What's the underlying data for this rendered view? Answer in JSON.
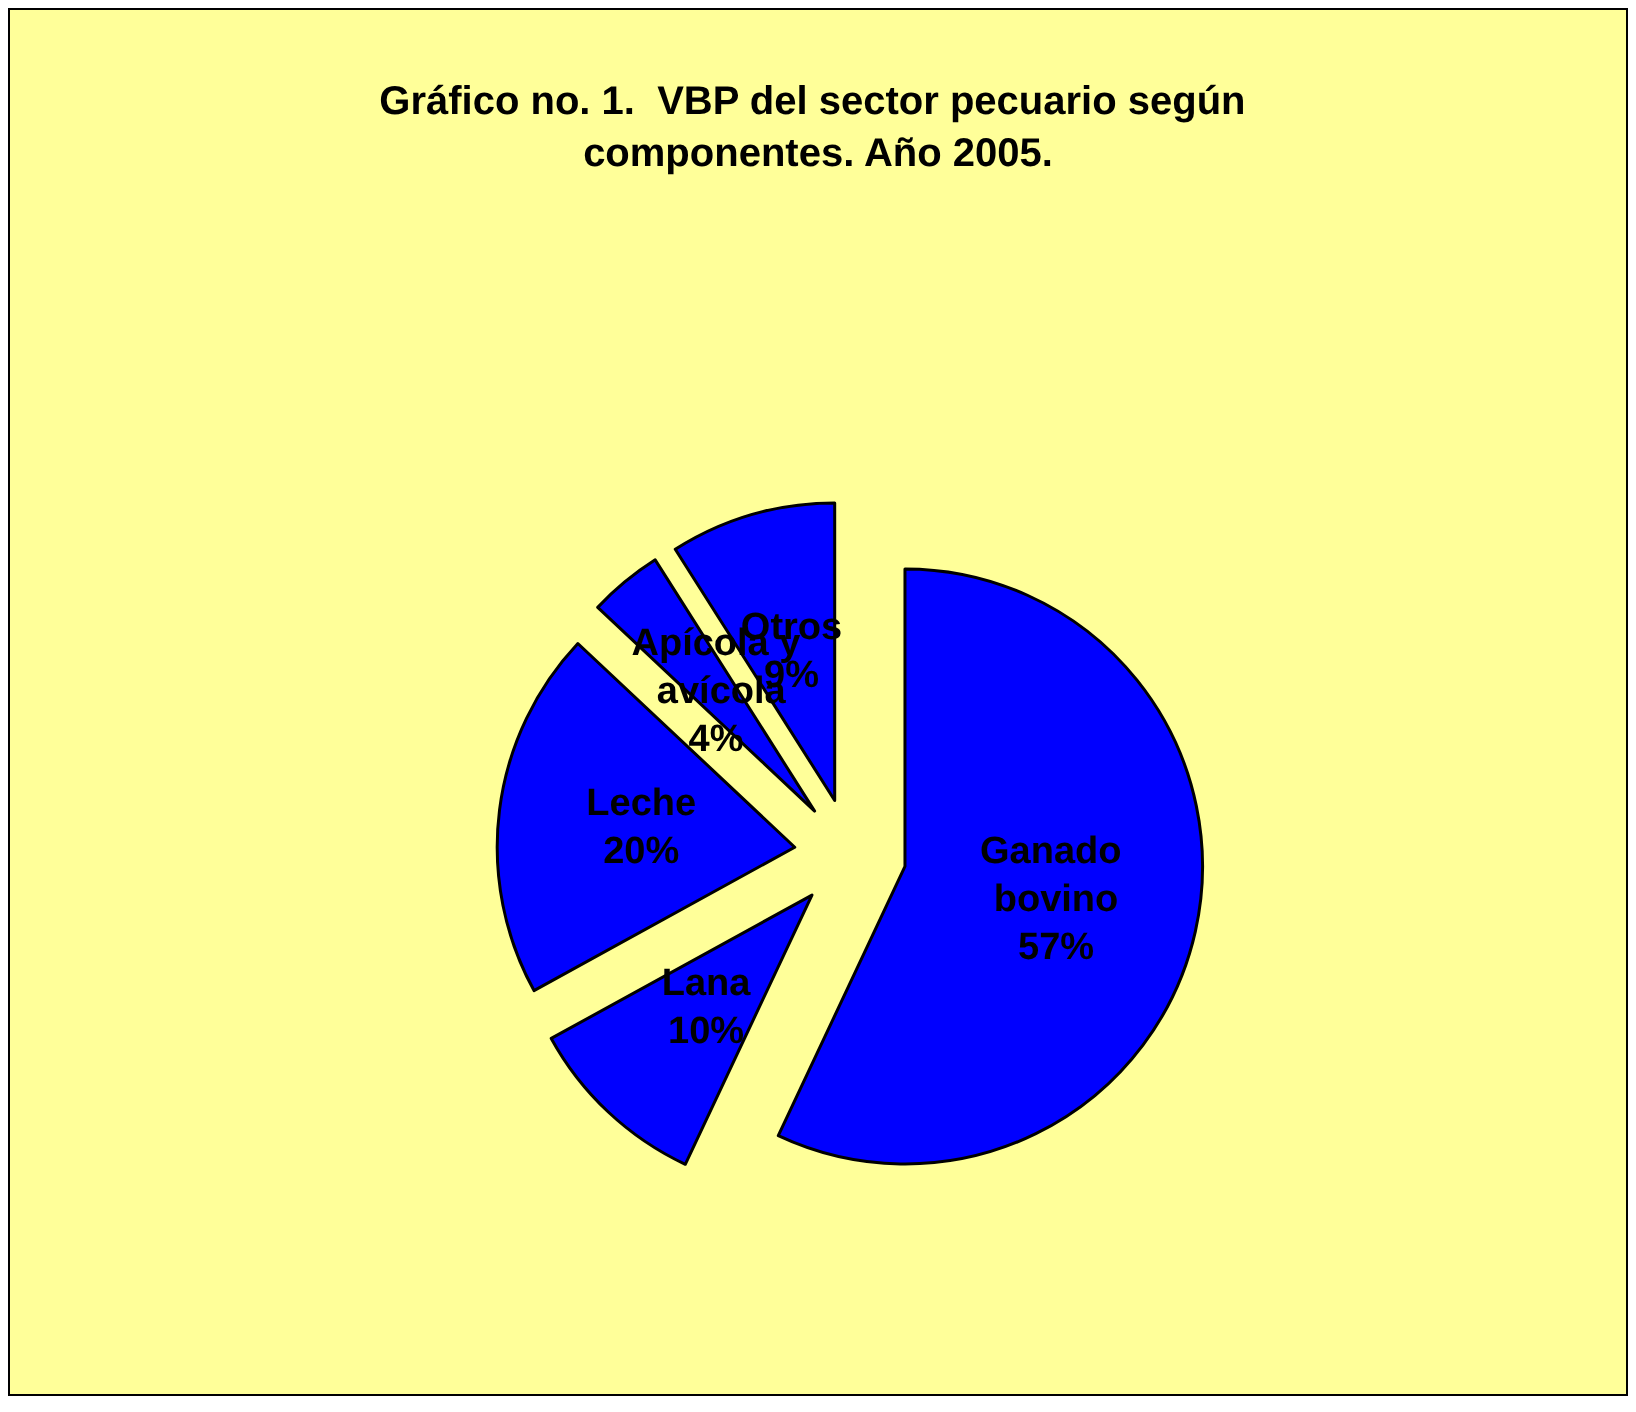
{
  "chart_data": {
    "type": "pie",
    "title": "Gráfico no. 1.  VBP del sector pecuario según componentes. Año 2005.",
    "categories": [
      "Ganado bovino",
      "Lana",
      "Leche",
      "Apícola y avícola",
      "Otros"
    ],
    "values": [
      57,
      10,
      20,
      4,
      9
    ],
    "value_labels": [
      "57%",
      "10%",
      "20%",
      "4%",
      "9%"
    ],
    "colors": [
      "#0000ff",
      "#0000ff",
      "#0000ff",
      "#0000ff",
      "#0000ff"
    ],
    "legend": false
  }
}
